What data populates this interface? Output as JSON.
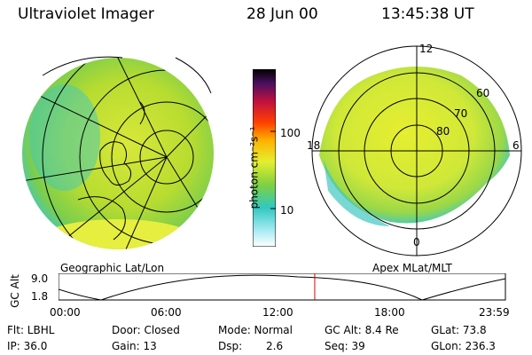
{
  "header": {
    "title": "Ultraviolet Imager",
    "date": "28 Jun 00",
    "time": "13:45:38 UT"
  },
  "colorbar": {
    "unit_label": "photon cm⁻²s⁻¹",
    "ticks": [
      "100",
      "10"
    ]
  },
  "left_panel": {
    "caption": "Geographic Lat/Lon"
  },
  "right_panel": {
    "caption": "Apex MLat/MLT",
    "mlt_labels": [
      "12",
      "18",
      "6",
      "0"
    ],
    "mlat_labels": [
      "60",
      "70",
      "80"
    ]
  },
  "alt_plot": {
    "ylabel": "GC Alt",
    "yticks": [
      "9.0",
      "1.8"
    ],
    "xticks": [
      "00:00",
      "06:00",
      "12:00",
      "18:00",
      "23:59"
    ],
    "current_time_hours": 13.76,
    "marker_color": "#e00000"
  },
  "info": {
    "row1": {
      "flt": "Flt: LBHL",
      "door": "Door: Closed",
      "mode": "Mode: Normal",
      "gcalt": "GC Alt: 8.4 Re",
      "glat": "GLat: 73.8"
    },
    "row2": {
      "ip": "IP: 36.0",
      "gain": "Gain: 13",
      "dsp_label": "Dsp:",
      "dsp_value": "2.6",
      "seq": "Seq: 39",
      "glon": "GLon: 236.3"
    }
  }
}
